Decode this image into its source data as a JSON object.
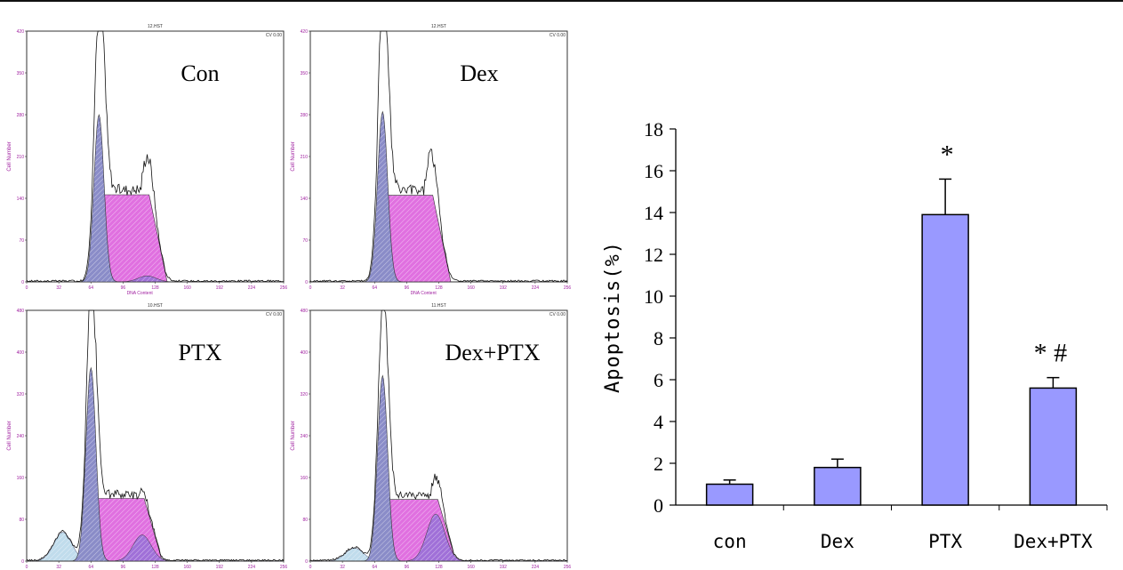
{
  "flow_panels": [
    {
      "id": "con",
      "label": "Con",
      "file": "12.HST",
      "cv": "CV 0.00",
      "ylabel": "Cell Number",
      "xlabel": "DNA Content",
      "yticks": [
        "0",
        "70",
        "140",
        "210",
        "280",
        "350",
        "420"
      ],
      "ymax": 420,
      "g1_peak": 400,
      "g1_fit": 280,
      "s_plateau": 146,
      "g2_peak": 210,
      "g2_fit": 10,
      "debris": 0,
      "g1_pos": 72,
      "g2_pos": 120,
      "colors": {
        "g1": "#8888c8",
        "s": "#e070e0",
        "g2": "#b080d0",
        "debris": "#b8d8e8"
      }
    },
    {
      "id": "dex",
      "label": "Dex",
      "file": "12.HST",
      "cv": "CV 0.00",
      "ylabel": "Cell Number",
      "xlabel": "DNA Content",
      "yticks": [
        "0",
        "70",
        "140",
        "210",
        "280",
        "350",
        "420"
      ],
      "ymax": 420,
      "g1_peak": 405,
      "g1_fit": 285,
      "s_plateau": 145,
      "g2_peak": 215,
      "g2_fit": 0,
      "debris": 0,
      "g1_pos": 72,
      "g2_pos": 120,
      "colors": {
        "g1": "#8888c8",
        "s": "#e070e0",
        "g2": "#b080d0",
        "debris": "#b8d8e8"
      }
    },
    {
      "id": "ptx",
      "label": "PTX",
      "file": "10.HST",
      "cv": "CV 0.00",
      "ylabel": "Cell Number",
      "xlabel": "",
      "yticks": [
        "0",
        "80",
        "160",
        "240",
        "320",
        "400",
        "480"
      ],
      "ymax": 480,
      "g1_peak": 440,
      "g1_fit": 370,
      "s_plateau": 120,
      "g2_peak": 135,
      "g2_fit": 50,
      "debris": 55,
      "g1_pos": 64,
      "g2_pos": 115,
      "colors": {
        "g1": "#8888c8",
        "s": "#e070e0",
        "g2": "#b080d0",
        "debris": "#b8d8e8"
      }
    },
    {
      "id": "dexptx",
      "label": "Dex+PTX",
      "file": "11.HST",
      "cv": "CV 0.00",
      "ylabel": "Cell Number",
      "xlabel": "",
      "yticks": [
        "0",
        "80",
        "160",
        "240",
        "320",
        "400",
        "480"
      ],
      "ymax": 480,
      "g1_peak": 430,
      "g1_fit": 355,
      "s_plateau": 118,
      "g2_peak": 160,
      "g2_fit": 90,
      "debris": 25,
      "g1_pos": 72,
      "g2_pos": 125,
      "colors": {
        "g1": "#8888c8",
        "s": "#e070e0",
        "g2": "#b080d0",
        "debris": "#b8d8e8"
      }
    }
  ],
  "flow_xticks": [
    "0",
    "32",
    "64",
    "96",
    "128",
    "160",
    "192",
    "224",
    "256"
  ],
  "chart_data": {
    "type": "bar",
    "categories": [
      "con",
      "Dex",
      "PTX",
      "Dex+PTX"
    ],
    "values": [
      1.0,
      1.8,
      13.9,
      5.6
    ],
    "errors": [
      0.2,
      0.4,
      1.7,
      0.5
    ],
    "annotations": [
      "",
      "",
      "*",
      "* #"
    ],
    "ylabel": "Apoptosis(%)",
    "xlabel": "",
    "title": "",
    "ylim": [
      0,
      18
    ],
    "yticks": [
      0,
      2,
      4,
      6,
      8,
      10,
      12,
      14,
      16,
      18
    ],
    "bar_color": "#9999ff",
    "grid": false
  }
}
